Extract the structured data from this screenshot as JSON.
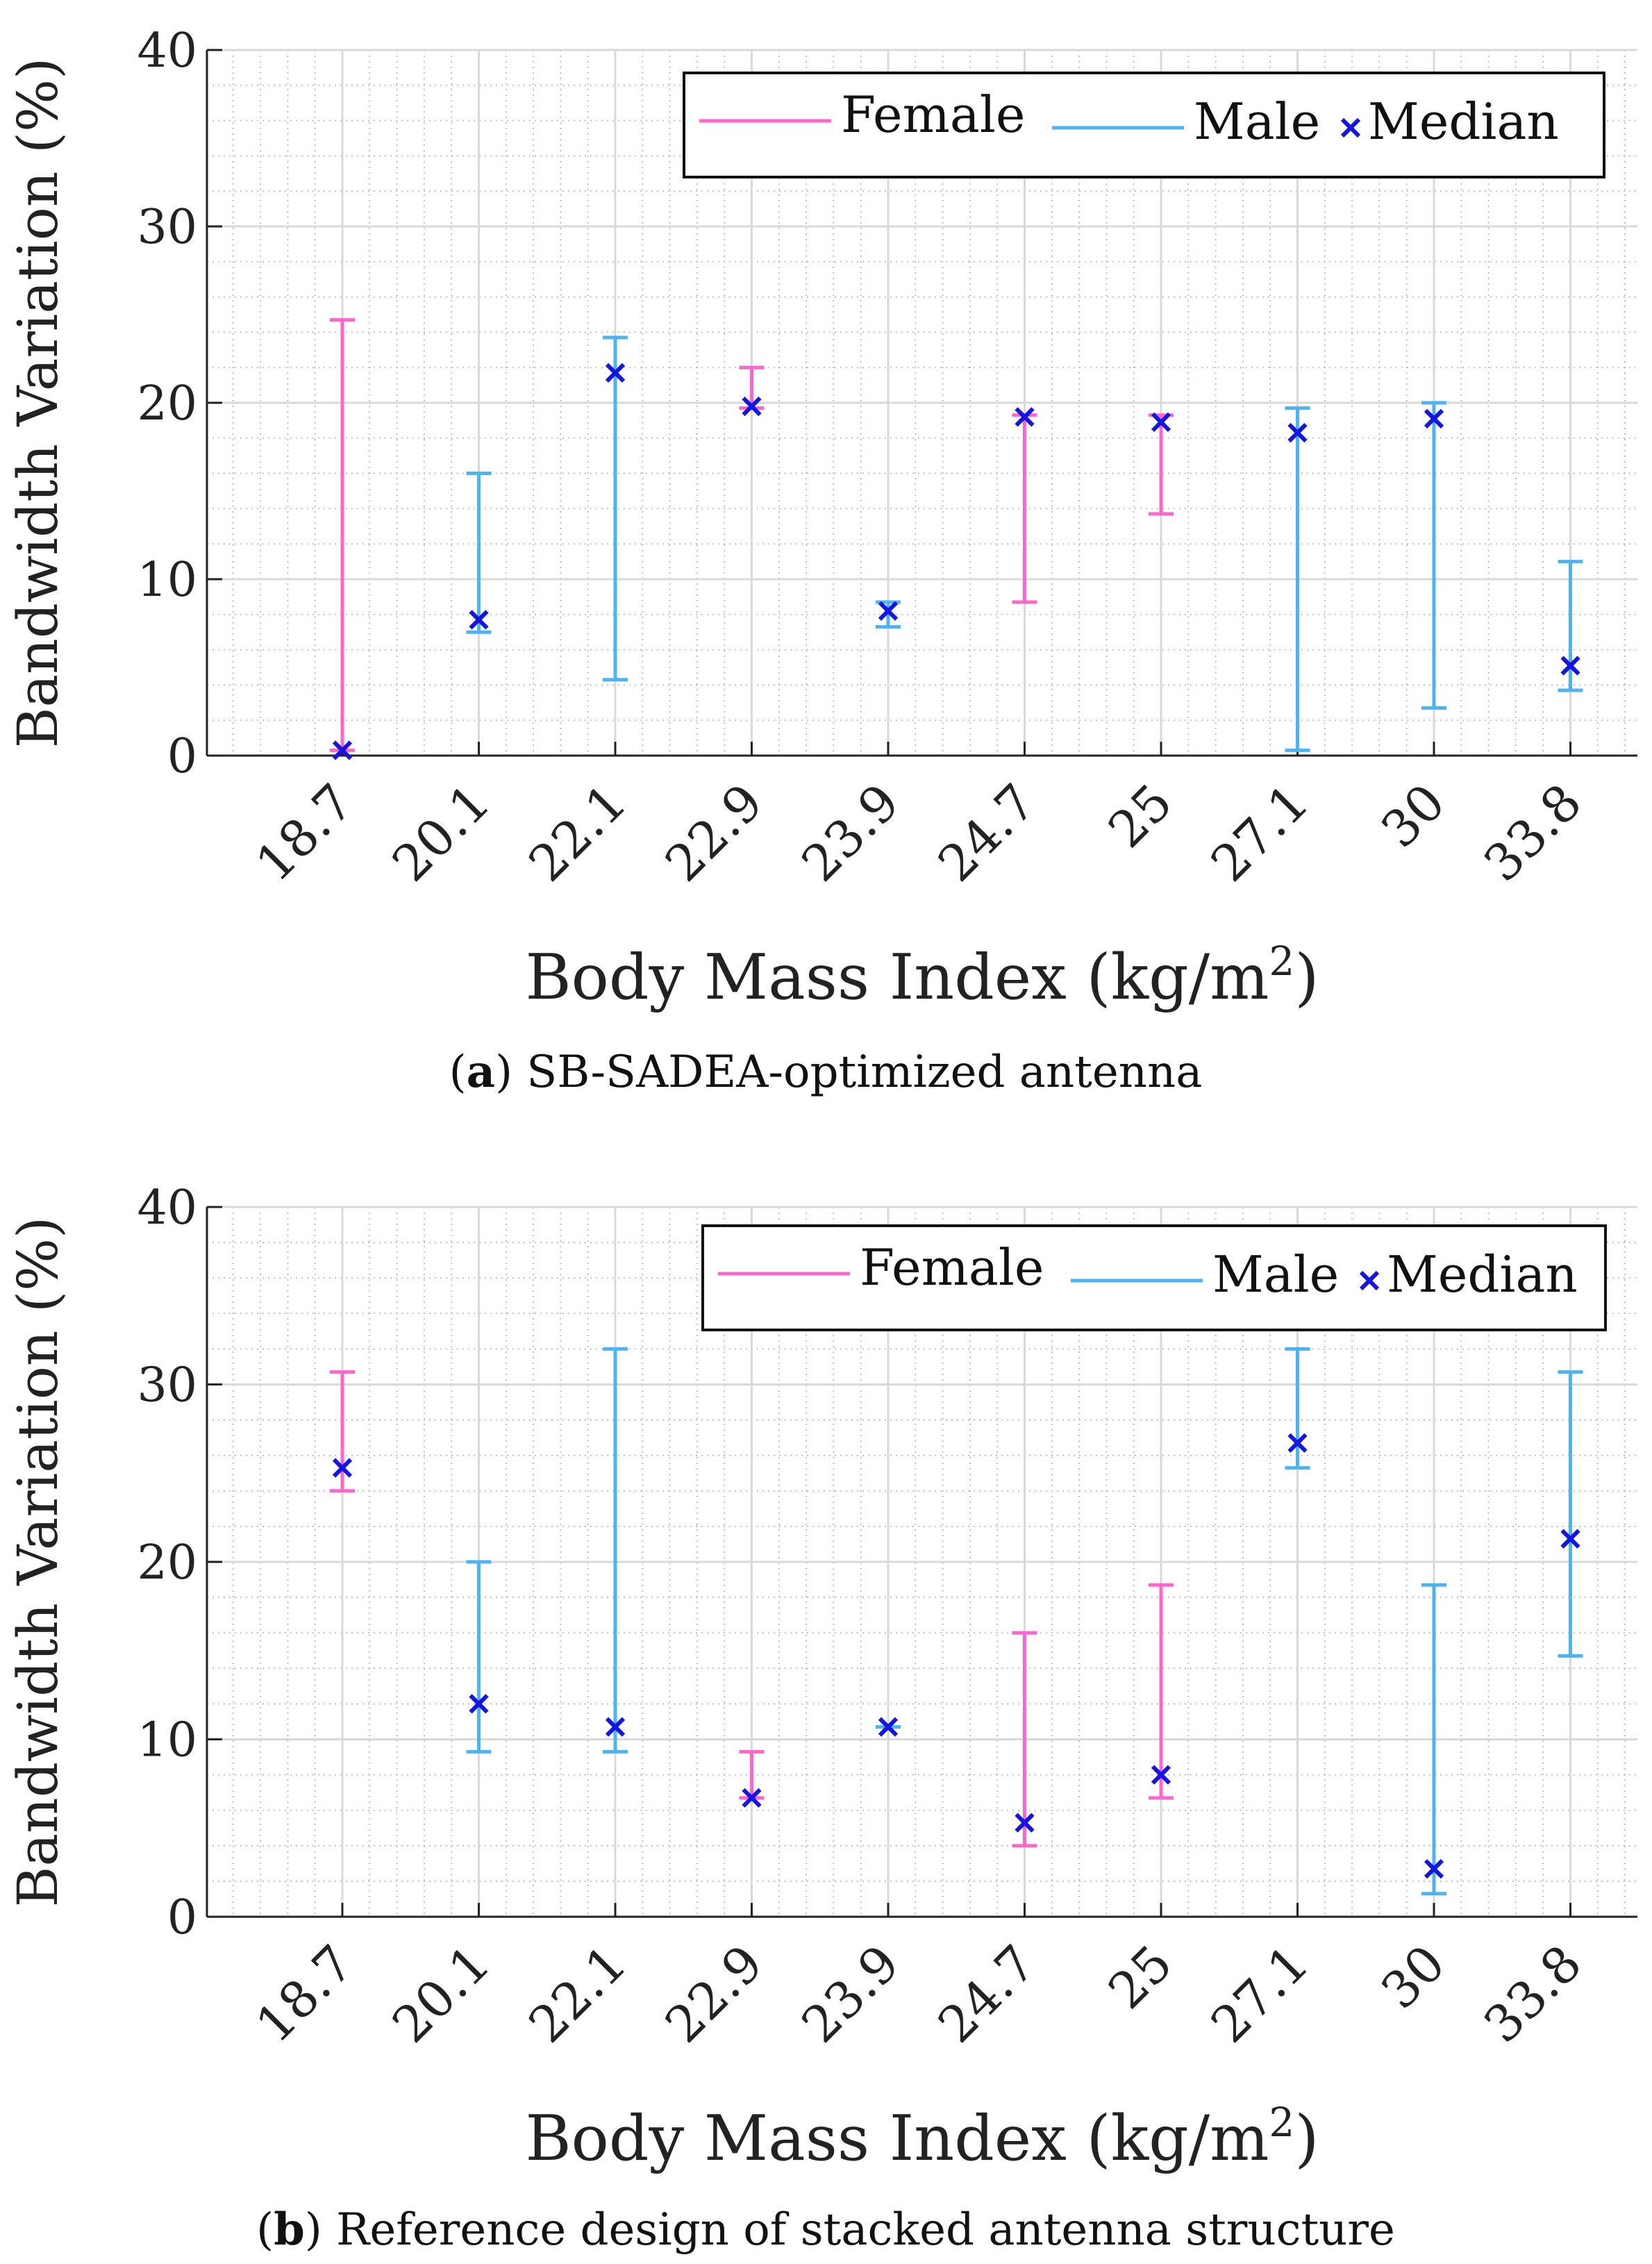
{
  "colors": {
    "female": "#ff66cc",
    "male": "#4db3f2",
    "median": "#1515e0",
    "grid_major": "#d9d9d9",
    "grid_minor": "#bfbfbf",
    "axis": "#222222"
  },
  "chart_data": [
    {
      "type": "errorbar",
      "panel_label": "a",
      "caption": "SB-SADEA-optimized antenna",
      "xlabel": "Body Mass Index (kg/m",
      "xlabel_sup": "2",
      "xlabel_tail": ")",
      "ylabel": "Bandwidth Variation (%)",
      "ylim": [
        0,
        40
      ],
      "yticks": [
        "0",
        "10",
        "20",
        "30",
        "40"
      ],
      "grid": true,
      "legend": {
        "position": "top-right",
        "female": "Female",
        "male": "Male",
        "median": "Median"
      },
      "categories": [
        "18.7",
        "20.1",
        "22.1",
        "22.9",
        "23.9",
        "24.7",
        "25",
        "27.1",
        "30",
        "33.8"
      ],
      "series_sex": [
        "Female",
        "Male",
        "Male",
        "Female",
        "Male",
        "Female",
        "Female",
        "Male",
        "Male",
        "Male"
      ],
      "lower": [
        0.3,
        7.0,
        4.3,
        19.7,
        7.3,
        8.7,
        13.7,
        0.3,
        2.7,
        3.7
      ],
      "upper": [
        24.7,
        16.0,
        23.7,
        22.0,
        8.7,
        19.3,
        19.3,
        19.7,
        20.0,
        11.0
      ],
      "median": [
        0.3,
        7.7,
        21.7,
        19.8,
        8.2,
        19.2,
        18.9,
        18.3,
        19.1,
        5.1
      ]
    },
    {
      "type": "errorbar",
      "panel_label": "b",
      "caption": "Reference design of stacked antenna structure",
      "xlabel": "Body Mass Index (kg/m",
      "xlabel_sup": "2",
      "xlabel_tail": ")",
      "ylabel": "Bandwidth Variation (%)",
      "ylim": [
        0,
        40
      ],
      "yticks": [
        "0",
        "10",
        "20",
        "30",
        "40"
      ],
      "grid": true,
      "legend": {
        "position": "top-right",
        "female": "Female",
        "male": "Male",
        "median": "Median"
      },
      "categories": [
        "18.7",
        "20.1",
        "22.1",
        "22.9",
        "23.9",
        "24.7",
        "25",
        "27.1",
        "30",
        "33.8"
      ],
      "series_sex": [
        "Female",
        "Male",
        "Male",
        "Female",
        "Male",
        "Female",
        "Female",
        "Male",
        "Male",
        "Male"
      ],
      "lower": [
        24.0,
        9.3,
        9.3,
        6.7,
        10.7,
        4.0,
        6.7,
        25.3,
        1.3,
        14.7
      ],
      "upper": [
        30.7,
        20.0,
        32.0,
        9.3,
        10.7,
        16.0,
        18.7,
        32.0,
        18.7,
        30.7
      ],
      "median": [
        25.3,
        12.0,
        10.7,
        6.7,
        10.7,
        5.3,
        8.0,
        26.7,
        2.7,
        21.3
      ]
    }
  ]
}
